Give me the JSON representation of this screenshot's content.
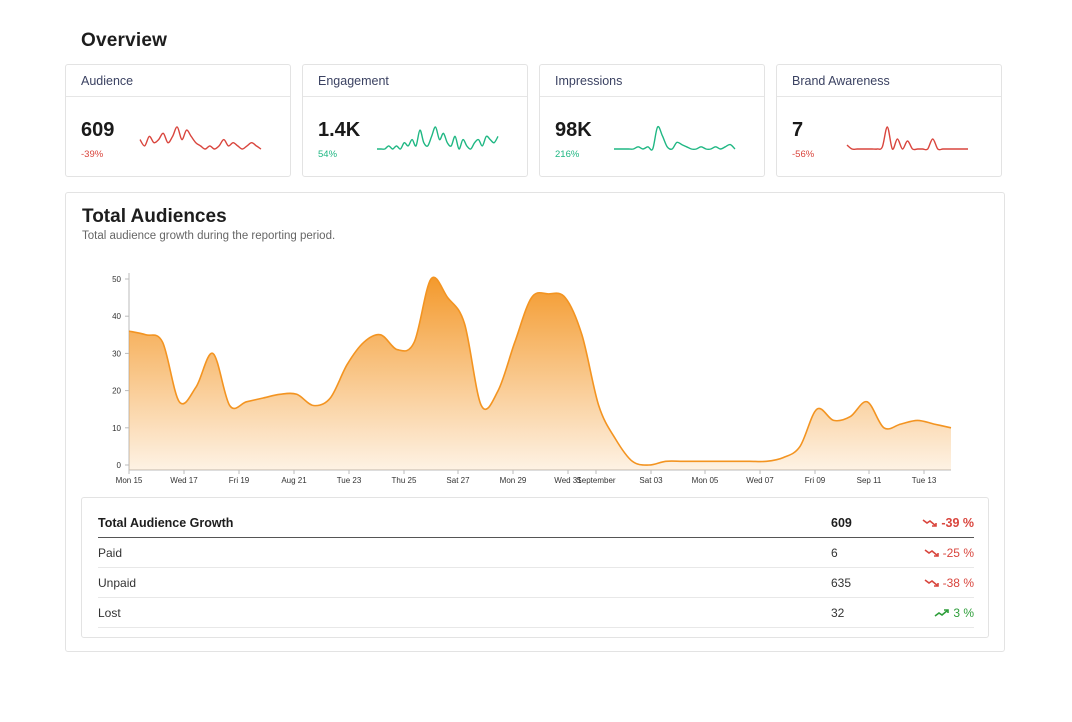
{
  "overview": {
    "title": "Overview",
    "cards": [
      {
        "label": "Audience",
        "value": "609",
        "change": "-39%",
        "trend": "negative",
        "color": "#d9453d",
        "spark": [
          5,
          3,
          6,
          4,
          5,
          7,
          4,
          6,
          9,
          5,
          8,
          6,
          4,
          3,
          2,
          3,
          2,
          3,
          5,
          3,
          4,
          3,
          2,
          3,
          4,
          3,
          2
        ]
      },
      {
        "label": "Engagement",
        "value": "1.4K",
        "change": "54%",
        "trend": "positive",
        "color": "#1fb783",
        "spark": [
          2,
          2,
          2,
          3,
          2,
          3,
          2,
          4,
          3,
          5,
          3,
          8,
          4,
          3,
          6,
          9,
          5,
          7,
          4,
          3,
          6,
          2,
          5,
          3,
          2,
          4,
          5,
          3,
          6,
          5,
          4,
          6
        ]
      },
      {
        "label": "Impressions",
        "value": "98K",
        "change": "216%",
        "trend": "positive",
        "color": "#1fb783",
        "spark": [
          2,
          2,
          2,
          2,
          2,
          3,
          2,
          3,
          2,
          12,
          8,
          3,
          2,
          5,
          4,
          3,
          2,
          2,
          3,
          2,
          2,
          3,
          2,
          3,
          4,
          2
        ]
      },
      {
        "label": "Brand Awareness",
        "value": "7",
        "change": "-56%",
        "trend": "negative",
        "color": "#d9453d",
        "spark": [
          3,
          1,
          1,
          1,
          1,
          1,
          1,
          2,
          12,
          1,
          6,
          1,
          5,
          1,
          1,
          1,
          1,
          6,
          1,
          1,
          1,
          1,
          1,
          1,
          1
        ]
      }
    ]
  },
  "main": {
    "title": "Total Audiences",
    "subtitle": "Total audience growth during the reporting period."
  },
  "chart_data": {
    "type": "area",
    "title": "",
    "xlabel": "",
    "ylabel": "",
    "ylim": [
      0,
      50
    ],
    "yticks": [
      0,
      10,
      20,
      30,
      40,
      50
    ],
    "x_tick_labels": [
      "Mon 15",
      "Wed 17",
      "Fri 19",
      "Aug 21",
      "Tue 23",
      "Thu 25",
      "Sat 27",
      "Mon 29",
      "Wed 31",
      "September",
      "Sat 03",
      "Mon 05",
      "Wed 07",
      "Fri 09",
      "Sep 11",
      "Tue 13"
    ],
    "series": [
      {
        "color": "#f39421",
        "values": [
          36,
          35,
          33,
          17,
          21,
          30,
          16,
          17,
          18,
          19,
          19,
          16,
          18,
          27,
          33,
          35,
          31,
          33,
          50,
          45,
          38,
          16,
          20,
          33,
          45,
          46,
          45,
          35,
          16,
          7,
          1,
          0,
          1,
          1,
          1,
          1,
          1,
          1,
          1,
          2,
          5,
          15,
          12,
          13,
          17,
          10,
          11,
          12,
          11,
          10
        ]
      }
    ]
  },
  "growth_table": {
    "header": {
      "label": "Total Audience Growth",
      "value": "609",
      "change": "-39 %",
      "trend": "negative"
    },
    "rows": [
      {
        "label": "Paid",
        "value": "6",
        "change": "-25 %",
        "trend": "negative"
      },
      {
        "label": "Unpaid",
        "value": "635",
        "change": "-38 %",
        "trend": "negative"
      },
      {
        "label": "Lost",
        "value": "32",
        "change": "3 %",
        "trend": "positive"
      }
    ]
  }
}
